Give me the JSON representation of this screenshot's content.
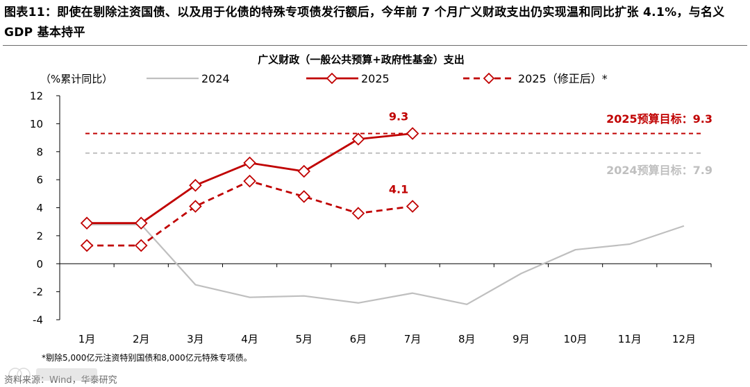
{
  "header": {
    "figure_label": "图表11：",
    "title_text": "即使在剔除注资国债、以及用于化债的特殊专项债发行额后，今年前 7 个月广义财政支出仍实现温和同比扩张 4.1%，与名义 GDP 基本持平"
  },
  "chart_data": {
    "type": "line",
    "title": "广义财政（一般公共预算+政府性基金）支出",
    "ylabel": "（%累计同比）",
    "categories": [
      "1月",
      "2月",
      "3月",
      "4月",
      "5月",
      "6月",
      "7月",
      "8月",
      "9月",
      "10月",
      "11月",
      "12月"
    ],
    "ylim": [
      -4,
      12
    ],
    "yticks": [
      -4,
      -2,
      0,
      2,
      4,
      6,
      8,
      10,
      12
    ],
    "grid": false,
    "legend_position": "top",
    "series": [
      {
        "name": "2024",
        "color": "#bfbfbf",
        "style": "solid",
        "marker": "none",
        "values": [
          2.8,
          2.8,
          -1.5,
          -2.4,
          -2.3,
          -2.8,
          -2.1,
          -2.9,
          -0.7,
          1.0,
          1.4,
          2.7
        ]
      },
      {
        "name": "2025",
        "color": "#c00000",
        "style": "solid",
        "marker": "diamond",
        "values": [
          2.9,
          2.9,
          5.6,
          7.2,
          6.6,
          8.9,
          9.3,
          null,
          null,
          null,
          null,
          null
        ]
      },
      {
        "name": "2025（修正后）*",
        "color": "#c00000",
        "style": "dashed",
        "marker": "diamond",
        "values": [
          1.3,
          1.3,
          4.1,
          5.9,
          4.8,
          3.6,
          4.1,
          null,
          null,
          null,
          null,
          null
        ]
      }
    ],
    "reference_lines": [
      {
        "value": 9.3,
        "color": "#c00000",
        "label": "2025预算目标：9.3"
      },
      {
        "value": 7.9,
        "color": "#bfbfbf",
        "label": "2024预算目标：7.9"
      }
    ],
    "data_labels": [
      {
        "series": 1,
        "index": 6,
        "text": "9.3",
        "color": "#c00000"
      },
      {
        "series": 2,
        "index": 6,
        "text": "4.1",
        "color": "#c00000"
      }
    ]
  },
  "footnote": "*剔除5,000亿元注资特别国债和8,000亿元特殊专项债。",
  "source": "资料来源：Wind，华泰研究"
}
